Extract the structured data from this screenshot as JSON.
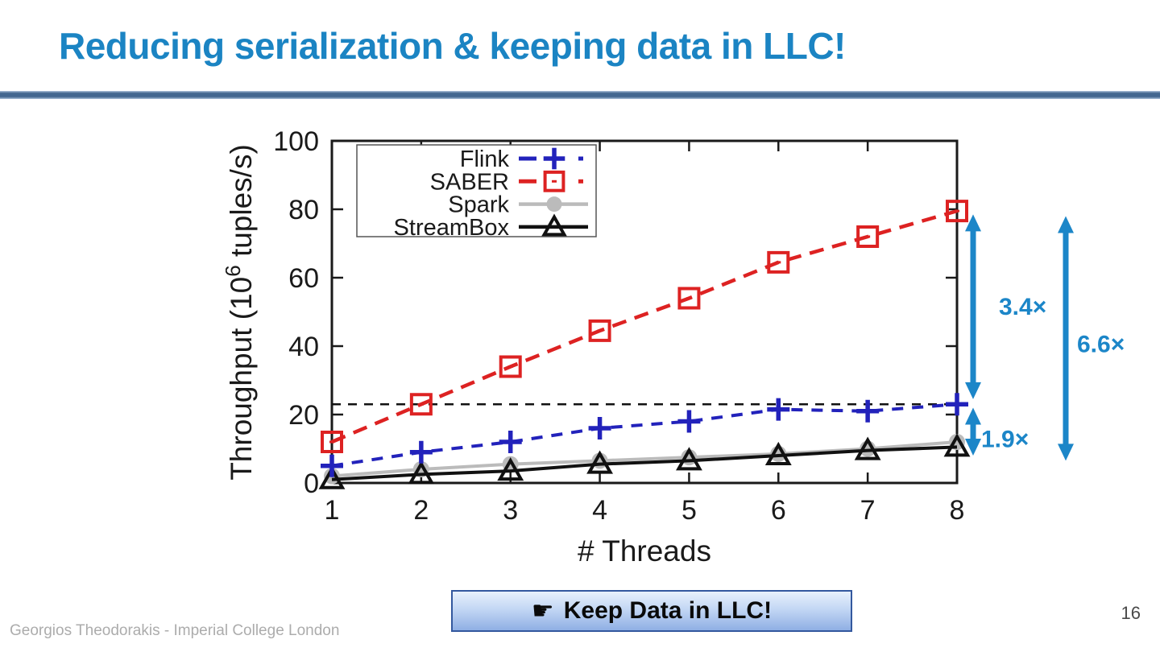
{
  "slide": {
    "title": "Reducing serialization & keeping data in LLC!",
    "banner": {
      "icon": "☛",
      "label": "Keep Data in LLC!"
    },
    "footer_credit": "Georgios Theodorakis - Imperial College London",
    "page_number": "16"
  },
  "colors": {
    "title-blue": "#1B84C3",
    "rule-blue": "#44678F",
    "annotation-blue": "#1C86C8",
    "banner-border": "#33589E",
    "banner-top": "#E8F1FC",
    "banner-bottom": "#8FAFE4",
    "footer-gray": "#ACACAC",
    "page-gray": "#4A4A4A",
    "axis-black": "#1a1a1a"
  },
  "chart_data": {
    "type": "line",
    "title": "",
    "xlabel": "# Threads",
    "ylabel": "Throughput (10⁶ tuples/s)",
    "x": [
      1,
      2,
      3,
      4,
      5,
      6,
      7,
      8
    ],
    "xlim": [
      1,
      8
    ],
    "ylim": [
      0,
      100
    ],
    "yticks": [
      0,
      20,
      40,
      60,
      80,
      100
    ],
    "grid": false,
    "legend_position": "top-left-inside",
    "series": [
      {
        "name": "Flink",
        "color": "#2222BB",
        "style": "dashed",
        "marker": "plus",
        "values": [
          5,
          9,
          12,
          16,
          18,
          21.5,
          21,
          23
        ]
      },
      {
        "name": "SABER",
        "color": "#DD2222",
        "style": "dashed",
        "marker": "open-square",
        "values": [
          12,
          23,
          34,
          44.5,
          54,
          64.5,
          72,
          79.5
        ]
      },
      {
        "name": "Spark",
        "color": "#BBBBBB",
        "style": "solid",
        "marker": "filled-circle",
        "values": [
          2,
          4,
          5.5,
          6.5,
          7.5,
          8.5,
          10,
          12
        ]
      },
      {
        "name": "StreamBox",
        "color": "#111111",
        "style": "solid",
        "marker": "open-triangle",
        "values": [
          1,
          2.5,
          3.5,
          5.5,
          6.5,
          8,
          9.5,
          10.5
        ]
      }
    ],
    "reference_line": {
      "y": 23,
      "style": "dashed",
      "color": "#111111"
    },
    "annotations": [
      {
        "label": "3.4×",
        "y_top": 78.5,
        "y_bottom": 24.5
      },
      {
        "label": "1.9×",
        "y_top": 22,
        "y_bottom": 8
      },
      {
        "label": "6.6×",
        "y_top": 78,
        "y_bottom": 6.5
      }
    ]
  }
}
